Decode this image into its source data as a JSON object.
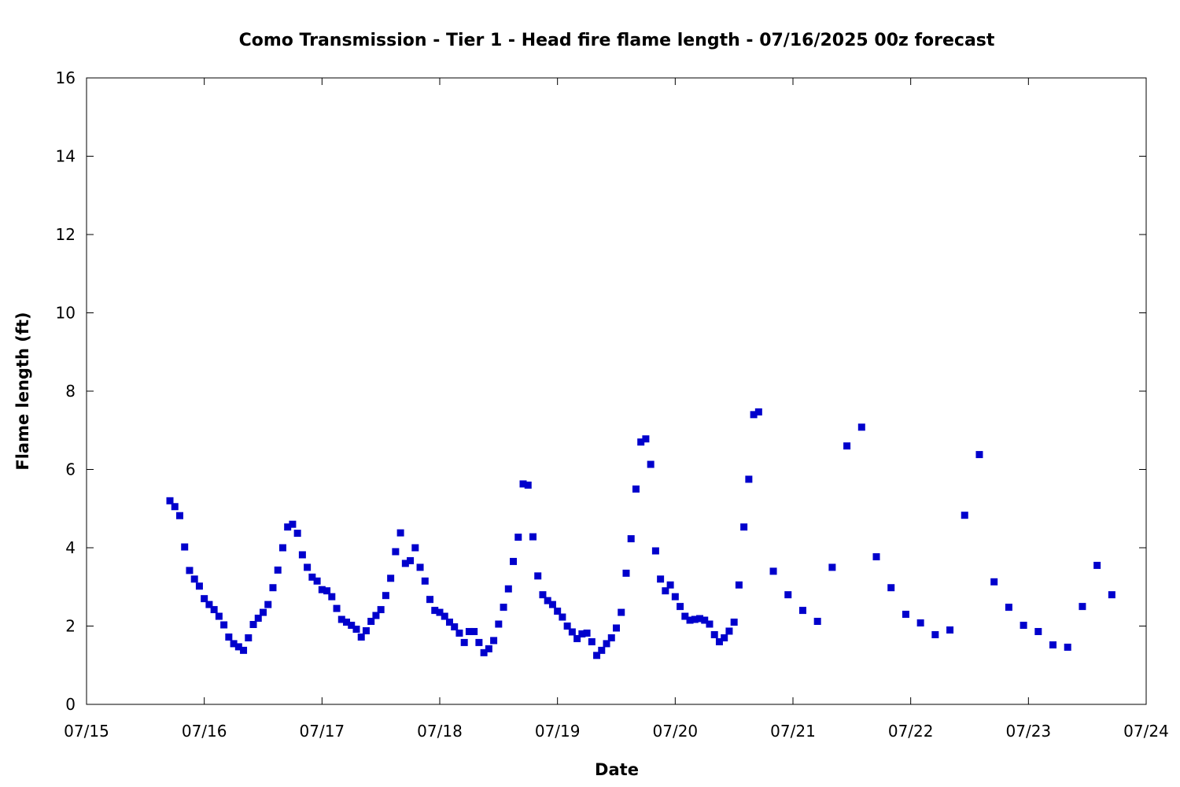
{
  "chart_data": {
    "type": "scatter",
    "title": "Como Transmission - Tier 1 - Head fire flame length - 07/16/2025 00z forecast",
    "xlabel": "Date",
    "ylabel": "Flame length (ft)",
    "xlim": [
      "2025-07-15T00:00",
      "2025-07-24T00:00"
    ],
    "ylim": [
      0,
      16
    ],
    "x_tick_labels": [
      "07/15",
      "07/16",
      "07/17",
      "07/18",
      "07/19",
      "07/20",
      "07/21",
      "07/22",
      "07/23",
      "07/24"
    ],
    "y_tick_labels": [
      "0",
      "2",
      "4",
      "6",
      "8",
      "10",
      "12",
      "14",
      "16"
    ],
    "y_ticks": [
      0,
      2,
      4,
      6,
      8,
      10,
      12,
      14,
      16
    ],
    "grid": false,
    "marker_color": "#0000cc",
    "series": [
      {
        "marker": "square",
        "points": [
          [
            "2025-07-15T17:00",
            5.2
          ],
          [
            "2025-07-15T18:00",
            5.05
          ],
          [
            "2025-07-15T19:00",
            4.82
          ],
          [
            "2025-07-15T20:00",
            4.02
          ],
          [
            "2025-07-15T21:00",
            3.42
          ],
          [
            "2025-07-15T22:00",
            3.2
          ],
          [
            "2025-07-15T23:00",
            3.02
          ],
          [
            "2025-07-16T00:00",
            2.7
          ],
          [
            "2025-07-16T01:00",
            2.55
          ],
          [
            "2025-07-16T02:00",
            2.42
          ],
          [
            "2025-07-16T03:00",
            2.25
          ],
          [
            "2025-07-16T04:00",
            2.03
          ],
          [
            "2025-07-16T05:00",
            1.72
          ],
          [
            "2025-07-16T06:00",
            1.55
          ],
          [
            "2025-07-16T07:00",
            1.47
          ],
          [
            "2025-07-16T08:00",
            1.38
          ],
          [
            "2025-07-16T09:00",
            1.7
          ],
          [
            "2025-07-16T10:00",
            2.04
          ],
          [
            "2025-07-16T11:00",
            2.2
          ],
          [
            "2025-07-16T12:00",
            2.35
          ],
          [
            "2025-07-16T13:00",
            2.55
          ],
          [
            "2025-07-16T14:00",
            2.98
          ],
          [
            "2025-07-16T15:00",
            3.43
          ],
          [
            "2025-07-16T16:00",
            4.0
          ],
          [
            "2025-07-16T17:00",
            4.53
          ],
          [
            "2025-07-16T18:00",
            4.6
          ],
          [
            "2025-07-16T19:00",
            4.37
          ],
          [
            "2025-07-16T20:00",
            3.82
          ],
          [
            "2025-07-16T21:00",
            3.5
          ],
          [
            "2025-07-16T22:00",
            3.25
          ],
          [
            "2025-07-16T23:00",
            3.15
          ],
          [
            "2025-07-17T00:00",
            2.93
          ],
          [
            "2025-07-17T01:00",
            2.9
          ],
          [
            "2025-07-17T02:00",
            2.75
          ],
          [
            "2025-07-17T03:00",
            2.45
          ],
          [
            "2025-07-17T04:00",
            2.17
          ],
          [
            "2025-07-17T05:00",
            2.1
          ],
          [
            "2025-07-17T06:00",
            2.02
          ],
          [
            "2025-07-17T07:00",
            1.92
          ],
          [
            "2025-07-17T08:00",
            1.72
          ],
          [
            "2025-07-17T09:00",
            1.88
          ],
          [
            "2025-07-17T10:00",
            2.12
          ],
          [
            "2025-07-17T11:00",
            2.27
          ],
          [
            "2025-07-17T12:00",
            2.42
          ],
          [
            "2025-07-17T13:00",
            2.78
          ],
          [
            "2025-07-17T14:00",
            3.22
          ],
          [
            "2025-07-17T15:00",
            3.9
          ],
          [
            "2025-07-17T16:00",
            4.38
          ],
          [
            "2025-07-17T17:00",
            3.6
          ],
          [
            "2025-07-17T18:00",
            3.67
          ],
          [
            "2025-07-17T19:00",
            4.0
          ],
          [
            "2025-07-17T20:00",
            3.5
          ],
          [
            "2025-07-17T21:00",
            3.15
          ],
          [
            "2025-07-17T22:00",
            2.68
          ],
          [
            "2025-07-17T23:00",
            2.4
          ],
          [
            "2025-07-18T00:00",
            2.35
          ],
          [
            "2025-07-18T01:00",
            2.25
          ],
          [
            "2025-07-18T02:00",
            2.1
          ],
          [
            "2025-07-18T03:00",
            1.98
          ],
          [
            "2025-07-18T04:00",
            1.82
          ],
          [
            "2025-07-18T05:00",
            1.58
          ],
          [
            "2025-07-18T06:00",
            1.86
          ],
          [
            "2025-07-18T07:00",
            1.86
          ],
          [
            "2025-07-18T08:00",
            1.58
          ],
          [
            "2025-07-18T09:00",
            1.32
          ],
          [
            "2025-07-18T10:00",
            1.42
          ],
          [
            "2025-07-18T11:00",
            1.63
          ],
          [
            "2025-07-18T12:00",
            2.05
          ],
          [
            "2025-07-18T13:00",
            2.48
          ],
          [
            "2025-07-18T14:00",
            2.95
          ],
          [
            "2025-07-18T15:00",
            3.65
          ],
          [
            "2025-07-18T16:00",
            4.27
          ],
          [
            "2025-07-18T17:00",
            5.63
          ],
          [
            "2025-07-18T18:00",
            5.6
          ],
          [
            "2025-07-18T19:00",
            4.28
          ],
          [
            "2025-07-18T20:00",
            3.28
          ],
          [
            "2025-07-18T21:00",
            2.8
          ],
          [
            "2025-07-18T22:00",
            2.65
          ],
          [
            "2025-07-18T23:00",
            2.55
          ],
          [
            "2025-07-19T00:00",
            2.38
          ],
          [
            "2025-07-19T01:00",
            2.23
          ],
          [
            "2025-07-19T02:00",
            2.0
          ],
          [
            "2025-07-19T03:00",
            1.85
          ],
          [
            "2025-07-19T04:00",
            1.68
          ],
          [
            "2025-07-19T05:00",
            1.8
          ],
          [
            "2025-07-19T06:00",
            1.82
          ],
          [
            "2025-07-19T07:00",
            1.6
          ],
          [
            "2025-07-19T08:00",
            1.25
          ],
          [
            "2025-07-19T09:00",
            1.38
          ],
          [
            "2025-07-19T10:00",
            1.55
          ],
          [
            "2025-07-19T11:00",
            1.7
          ],
          [
            "2025-07-19T12:00",
            1.95
          ],
          [
            "2025-07-19T13:00",
            2.35
          ],
          [
            "2025-07-19T14:00",
            3.35
          ],
          [
            "2025-07-19T15:00",
            4.23
          ],
          [
            "2025-07-19T16:00",
            5.5
          ],
          [
            "2025-07-19T17:00",
            6.7
          ],
          [
            "2025-07-19T18:00",
            6.78
          ],
          [
            "2025-07-19T19:00",
            6.13
          ],
          [
            "2025-07-19T20:00",
            3.92
          ],
          [
            "2025-07-19T21:00",
            3.2
          ],
          [
            "2025-07-19T22:00",
            2.9
          ],
          [
            "2025-07-19T23:00",
            3.05
          ],
          [
            "2025-07-20T00:00",
            2.75
          ],
          [
            "2025-07-20T01:00",
            2.5
          ],
          [
            "2025-07-20T02:00",
            2.25
          ],
          [
            "2025-07-20T03:00",
            2.15
          ],
          [
            "2025-07-20T04:00",
            2.17
          ],
          [
            "2025-07-20T05:00",
            2.19
          ],
          [
            "2025-07-20T06:00",
            2.15
          ],
          [
            "2025-07-20T07:00",
            2.05
          ],
          [
            "2025-07-20T08:00",
            1.78
          ],
          [
            "2025-07-20T09:00",
            1.6
          ],
          [
            "2025-07-20T10:00",
            1.7
          ],
          [
            "2025-07-20T11:00",
            1.87
          ],
          [
            "2025-07-20T12:00",
            2.1
          ],
          [
            "2025-07-20T13:00",
            3.05
          ],
          [
            "2025-07-20T14:00",
            4.53
          ],
          [
            "2025-07-20T15:00",
            5.75
          ],
          [
            "2025-07-20T16:00",
            7.4
          ],
          [
            "2025-07-20T17:00",
            7.47
          ],
          [
            "2025-07-20T20:00",
            3.4
          ],
          [
            "2025-07-20T23:00",
            2.8
          ],
          [
            "2025-07-21T02:00",
            2.4
          ],
          [
            "2025-07-21T05:00",
            2.12
          ],
          [
            "2025-07-21T08:00",
            3.5
          ],
          [
            "2025-07-21T11:00",
            6.6
          ],
          [
            "2025-07-21T14:00",
            7.08
          ],
          [
            "2025-07-21T17:00",
            3.77
          ],
          [
            "2025-07-21T20:00",
            2.98
          ],
          [
            "2025-07-21T23:00",
            2.3
          ],
          [
            "2025-07-22T02:00",
            2.08
          ],
          [
            "2025-07-22T05:00",
            1.78
          ],
          [
            "2025-07-22T08:00",
            1.9
          ],
          [
            "2025-07-22T11:00",
            4.83
          ],
          [
            "2025-07-22T14:00",
            6.38
          ],
          [
            "2025-07-22T17:00",
            3.13
          ],
          [
            "2025-07-22T20:00",
            2.48
          ],
          [
            "2025-07-22T23:00",
            2.02
          ],
          [
            "2025-07-23T02:00",
            1.86
          ],
          [
            "2025-07-23T05:00",
            1.52
          ],
          [
            "2025-07-23T08:00",
            1.46
          ],
          [
            "2025-07-23T11:00",
            2.5
          ],
          [
            "2025-07-23T14:00",
            3.55
          ],
          [
            "2025-07-23T17:00",
            2.8
          ]
        ]
      }
    ]
  }
}
